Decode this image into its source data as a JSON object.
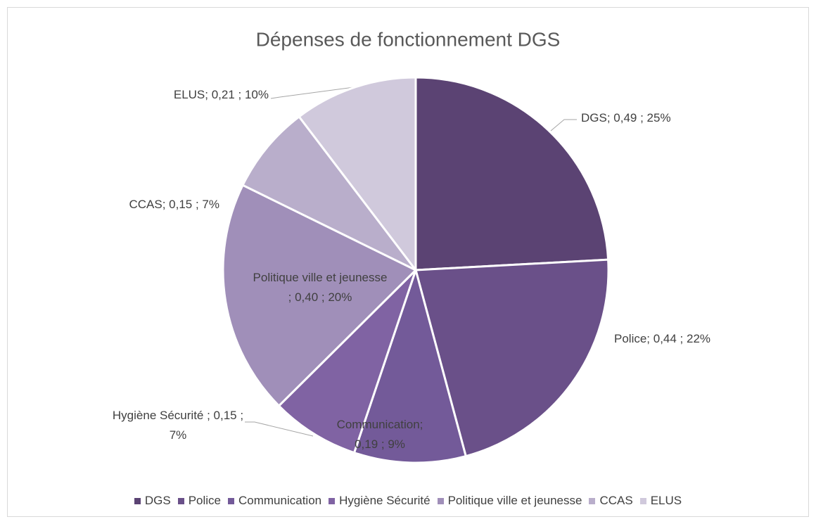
{
  "chart_data": {
    "type": "pie",
    "title": "Dépenses de fonctionnement DGS",
    "categories": [
      "DGS",
      "Police",
      "Communication",
      "Hygiène Sécurité",
      "Politique ville et jeunesse",
      "CCAS",
      "ELUS"
    ],
    "values": [
      0.49,
      0.44,
      0.19,
      0.15,
      0.4,
      0.15,
      0.21
    ],
    "value_labels": [
      "DGS;  0,49 ; 25%",
      "Police;  0,44 ; 22%",
      "Communication;  0,19 ; 9%",
      "Hygiène Sécurité ; 0,15 ; 7%",
      "Politique ville et jeunesse ;  0,40 ; 20%",
      "CCAS;  0,15 ; 7%",
      "ELUS;  0,21 ; 10%"
    ],
    "colors": [
      "#5b4373",
      "#6a5089",
      "#735a99",
      "#8063a3",
      "#a08fb9",
      "#b9aecb",
      "#d0c9dc"
    ],
    "legend": "bottom"
  }
}
